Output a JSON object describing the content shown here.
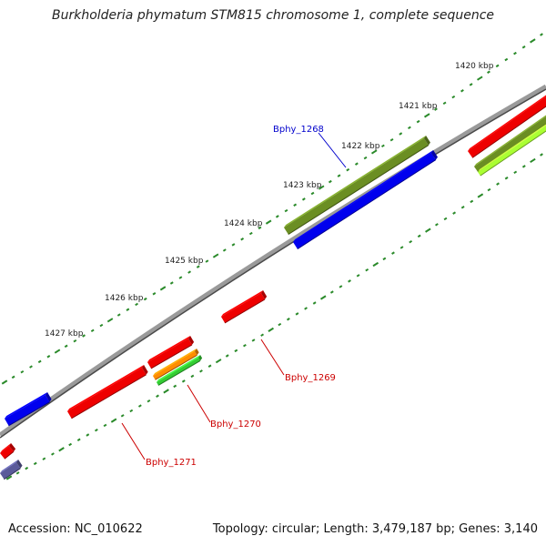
{
  "title": "Burkholderia phymatum STM815 chromosome 1, complete sequence",
  "footer": {
    "accession": "Accession: NC_010622",
    "summary": "Topology: circular; Length: 3,479,187 bp; Genes: 3,140"
  },
  "ruler": {
    "color": "#2a8a2a",
    "labels": [
      "1420 kbp",
      "1421 kbp",
      "1422 kbp",
      "1423 kbp",
      "1424 kbp",
      "1425 kbp",
      "1426 kbp",
      "1427 kbp"
    ]
  },
  "genes": [
    {
      "label": "Bphy_1268",
      "color": "#0000cc"
    },
    {
      "label": "Bphy_1269",
      "color": "#cc0000"
    },
    {
      "label": "Bphy_1270",
      "color": "#cc0000"
    },
    {
      "label": "Bphy_1271",
      "color": "#cc0000"
    }
  ],
  "feature_colors": {
    "red": "#ee0000",
    "blue": "#0000ee",
    "olive": "#6b8e23",
    "orange": "#ff8c00",
    "green": "#33cc33",
    "lime": "#aaff33",
    "slate": "#5a5a9a"
  }
}
